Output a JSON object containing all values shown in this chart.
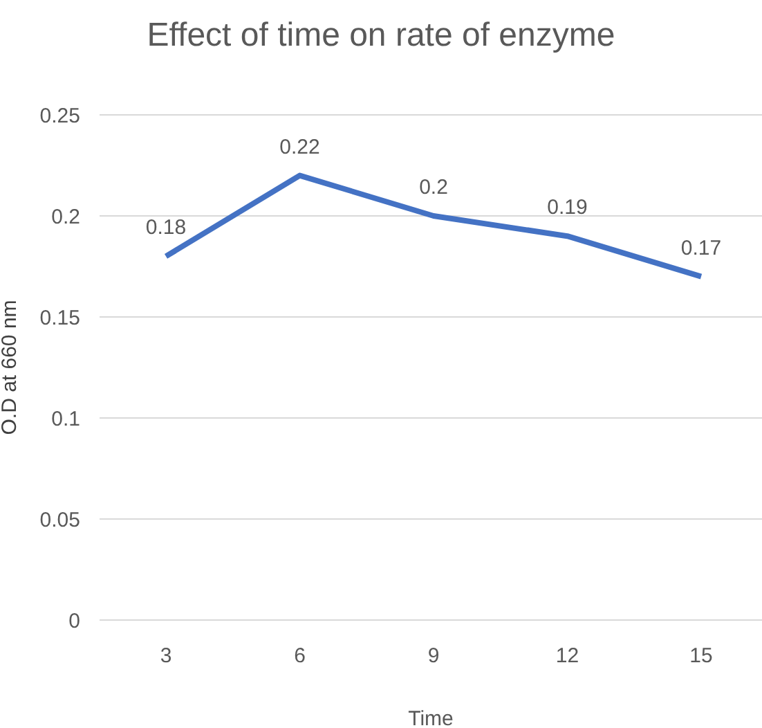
{
  "chart_data": {
    "type": "line",
    "title": "Effect of time on rate of enzyme",
    "xlabel": "Time",
    "ylabel": "O.D at 660 nm",
    "categories": [
      "3",
      "6",
      "9",
      "12",
      "15"
    ],
    "series": [
      {
        "color": "#4472c4",
        "values": [
          0.18,
          0.22,
          0.2,
          0.19,
          0.17
        ]
      }
    ],
    "ylim": [
      0,
      0.25
    ],
    "yticks": [
      0,
      0.05,
      0.1,
      0.15,
      0.2,
      0.25
    ],
    "grid": "y",
    "legend": false,
    "marker": "none",
    "line_style": "solid",
    "data_labels": true
  }
}
